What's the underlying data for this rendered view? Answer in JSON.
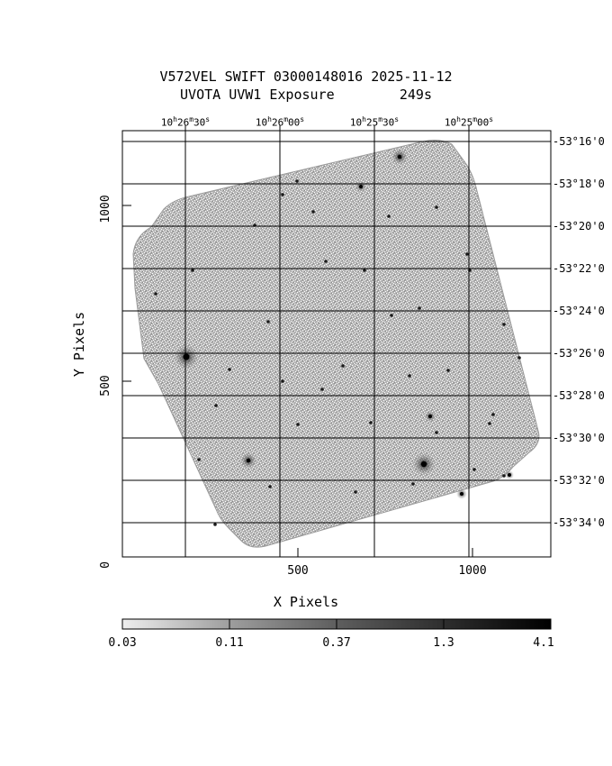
{
  "header": {
    "title_line1": "V572VEL SWIFT 03000148016 2025-11-12",
    "title_line2": "UVOTA UVW1 Exposure        249s"
  },
  "axes": {
    "xlabel": "X Pixels",
    "ylabel": "Y Pixels",
    "x_ticks": [
      "500",
      "1000"
    ],
    "y_ticks": [
      "0",
      "500",
      "1000"
    ],
    "ra_labels": [
      {
        "h": "10",
        "m": "26",
        "s": "30"
      },
      {
        "h": "10",
        "m": "26",
        "s": "00"
      },
      {
        "h": "10",
        "m": "25",
        "s": "30"
      },
      {
        "h": "10",
        "m": "25",
        "s": "00"
      }
    ],
    "dec_labels": [
      "-53°16'0",
      "-53°18'0",
      "-53°20'0",
      "-53°22'0",
      "-53°24'0",
      "-53°26'0",
      "-53°28'0",
      "-53°30'0",
      "-53°32'0",
      "-53°34'0"
    ]
  },
  "colorbar": {
    "ticks": [
      "0.03",
      "0.11",
      "0.37",
      "1.3",
      "4.1"
    ],
    "scale": "log",
    "color_low": "#e6e6e6",
    "color_high": "#000000"
  },
  "image": {
    "description_colors": {
      "background": "#ffffff",
      "frame": "#000000",
      "noise": "#9a9a9a"
    }
  }
}
